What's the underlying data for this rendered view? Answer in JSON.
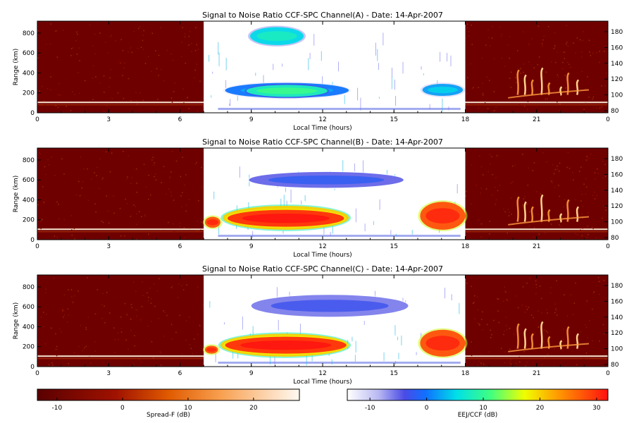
{
  "chart_data": {
    "type": "heatmap",
    "panels": [
      {
        "title": "Signal to Noise Ratio CCF-SPC Channel(A) - Date: 14-Apr-2007",
        "xlabel": "Local Time (hours)",
        "ylabel": "Range (km)",
        "xlim": [
          0,
          24
        ],
        "ylim": [
          0,
          920
        ],
        "xticks": [
          "0",
          "3",
          "6",
          "9",
          "12",
          "15",
          "18",
          "21",
          "0"
        ],
        "yticks": [
          "0",
          "200",
          "400",
          "600",
          "800"
        ],
        "y2ticks": [
          "80",
          "100",
          "120",
          "140",
          "160",
          "180"
        ],
        "echoes": [
          {
            "kind": "ccf",
            "t0": 8.95,
            "t1": 11.2,
            "r0": 680,
            "r1": 860,
            "db": 5
          },
          {
            "kind": "ccf",
            "t0": 7.9,
            "t1": 13.1,
            "r0": 150,
            "r1": 300,
            "db": 0
          },
          {
            "kind": "ccf",
            "t0": 8.8,
            "t1": 12.2,
            "r0": 160,
            "r1": 280,
            "db": 8
          },
          {
            "kind": "ccf",
            "t0": 16.2,
            "t1": 17.9,
            "r0": 170,
            "r1": 290,
            "db": 2
          }
        ]
      },
      {
        "title": "Signal to Noise Ratio CCF-SPC Channel(B) - Date: 14-Apr-2007",
        "xlabel": "Local Time (hours)",
        "ylabel": "Range (km)",
        "xlim": [
          0,
          24
        ],
        "ylim": [
          0,
          920
        ],
        "xticks": [
          "0",
          "3",
          "6",
          "9",
          "12",
          "15",
          "18",
          "21",
          "0"
        ],
        "yticks": [
          "0",
          "200",
          "400",
          "600",
          "800"
        ],
        "y2ticks": [
          "80",
          "100",
          "120",
          "140",
          "160",
          "180"
        ],
        "echoes": [
          {
            "kind": "ccf",
            "t0": 8.9,
            "t1": 15.4,
            "r0": 520,
            "r1": 680,
            "db": -5
          },
          {
            "kind": "ccf",
            "t0": 7.8,
            "t1": 13.1,
            "r0": 100,
            "r1": 340,
            "db": 20
          },
          {
            "kind": "ccf",
            "t0": 8.0,
            "t1": 12.9,
            "r0": 130,
            "r1": 300,
            "db": 30
          },
          {
            "kind": "ccf",
            "t0": 7.05,
            "t1": 7.7,
            "r0": 120,
            "r1": 230,
            "db": 28
          },
          {
            "kind": "ccf",
            "t0": 16.1,
            "t1": 18.0,
            "r0": 100,
            "r1": 380,
            "db": 28
          }
        ]
      },
      {
        "title": "Signal to Noise Ratio CCF-SPC Channel(C) - Date: 14-Apr-2007",
        "xlabel": "Local Time (hours)",
        "ylabel": "Range (km)",
        "xlim": [
          0,
          24
        ],
        "ylim": [
          0,
          920
        ],
        "xticks": [
          "0",
          "3",
          "6",
          "9",
          "12",
          "15",
          "18",
          "21",
          "0"
        ],
        "yticks": [
          "0",
          "200",
          "400",
          "600",
          "800"
        ],
        "y2ticks": [
          "80",
          "100",
          "120",
          "140",
          "160",
          "180"
        ],
        "echoes": [
          {
            "kind": "ccf",
            "t0": 9.0,
            "t1": 15.6,
            "r0": 500,
            "r1": 720,
            "db": -6
          },
          {
            "kind": "ccf",
            "t0": 7.7,
            "t1": 13.1,
            "r0": 100,
            "r1": 330,
            "db": 20
          },
          {
            "kind": "ccf",
            "t0": 7.9,
            "t1": 13.0,
            "r0": 130,
            "r1": 300,
            "db": 30
          },
          {
            "kind": "ccf",
            "t0": 7.05,
            "t1": 7.6,
            "r0": 130,
            "r1": 210,
            "db": 28
          },
          {
            "kind": "ccf",
            "t0": 16.1,
            "t1": 18.0,
            "r0": 100,
            "r1": 370,
            "db": 28
          }
        ]
      }
    ],
    "colorbars": [
      {
        "label": "Spread-F (dB)",
        "ticks": [
          "-10",
          "0",
          "10",
          "20"
        ],
        "range": [
          -13,
          27
        ]
      },
      {
        "label": "EEJ/CCF (dB)",
        "ticks": [
          "-10",
          "0",
          "10",
          "20",
          "30"
        ],
        "range": [
          -14,
          32
        ]
      }
    ],
    "colors": {
      "spread_background": "#6e0000",
      "spread_trace": "#fff2dc",
      "ccf_background": "#ffffff"
    }
  }
}
